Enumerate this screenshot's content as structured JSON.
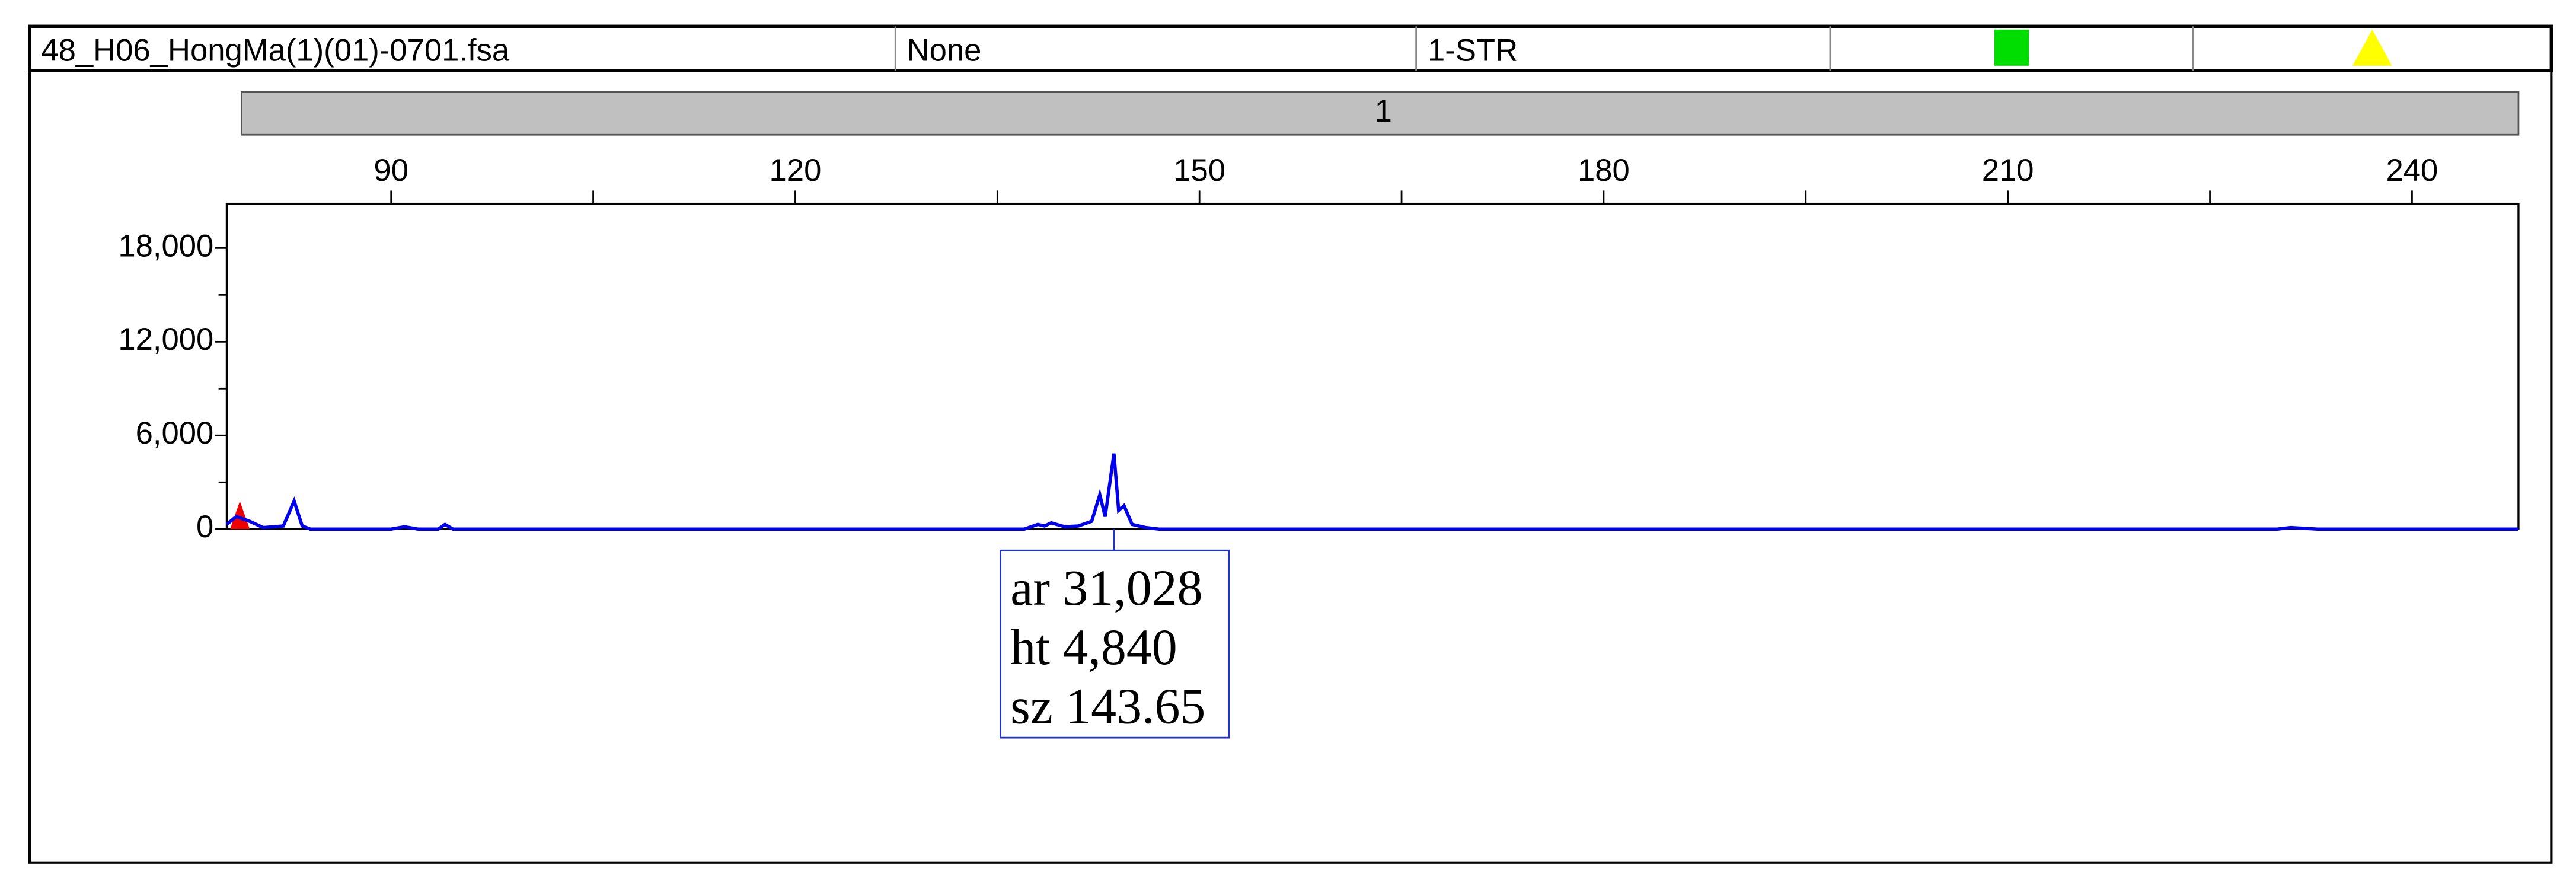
{
  "header": {
    "file": "48_H06_HongMa(1)(01)-0701.fsa",
    "panel": "None",
    "analysis": "1-STR"
  },
  "chart_data": {
    "type": "line",
    "bin_label": "1",
    "x": [
      77.8,
      78.5,
      79.5,
      80.5,
      82,
      82.8,
      83.4,
      84,
      90,
      91,
      92,
      93.5,
      94,
      94.6,
      137,
      138,
      138.5,
      139,
      140,
      141,
      142,
      142.6,
      143,
      143.65,
      144,
      144.4,
      145,
      146,
      147,
      230,
      231,
      233,
      247.9
    ],
    "series": [
      {
        "color": "#0000ee",
        "values": [
          300,
          800,
          500,
          100,
          200,
          1800,
          200,
          0,
          0,
          150,
          0,
          0,
          300,
          0,
          0,
          300,
          200,
          400,
          150,
          200,
          500,
          2200,
          800,
          4840,
          1200,
          1500,
          300,
          100,
          0,
          0,
          100,
          0,
          0
        ]
      }
    ],
    "xlim": [
      77.8,
      247.9
    ],
    "xticks": [
      90,
      120,
      150,
      180,
      210,
      240
    ],
    "xminorticks": [
      105,
      135,
      165,
      195,
      225
    ],
    "ylim": [
      0,
      20840
    ],
    "yticks": [
      0,
      {
        "value": 6000,
        "label": "6,000"
      },
      {
        "value": 12000,
        "label": "12,000"
      },
      {
        "value": 18000,
        "label": "18,000"
      }
    ],
    "yminorticks": [
      3000,
      9000,
      15000
    ],
    "annotation": {
      "x": 143.65,
      "lines": [
        "ar 31,028",
        "ht 4,840",
        "sz 143.65"
      ]
    }
  }
}
